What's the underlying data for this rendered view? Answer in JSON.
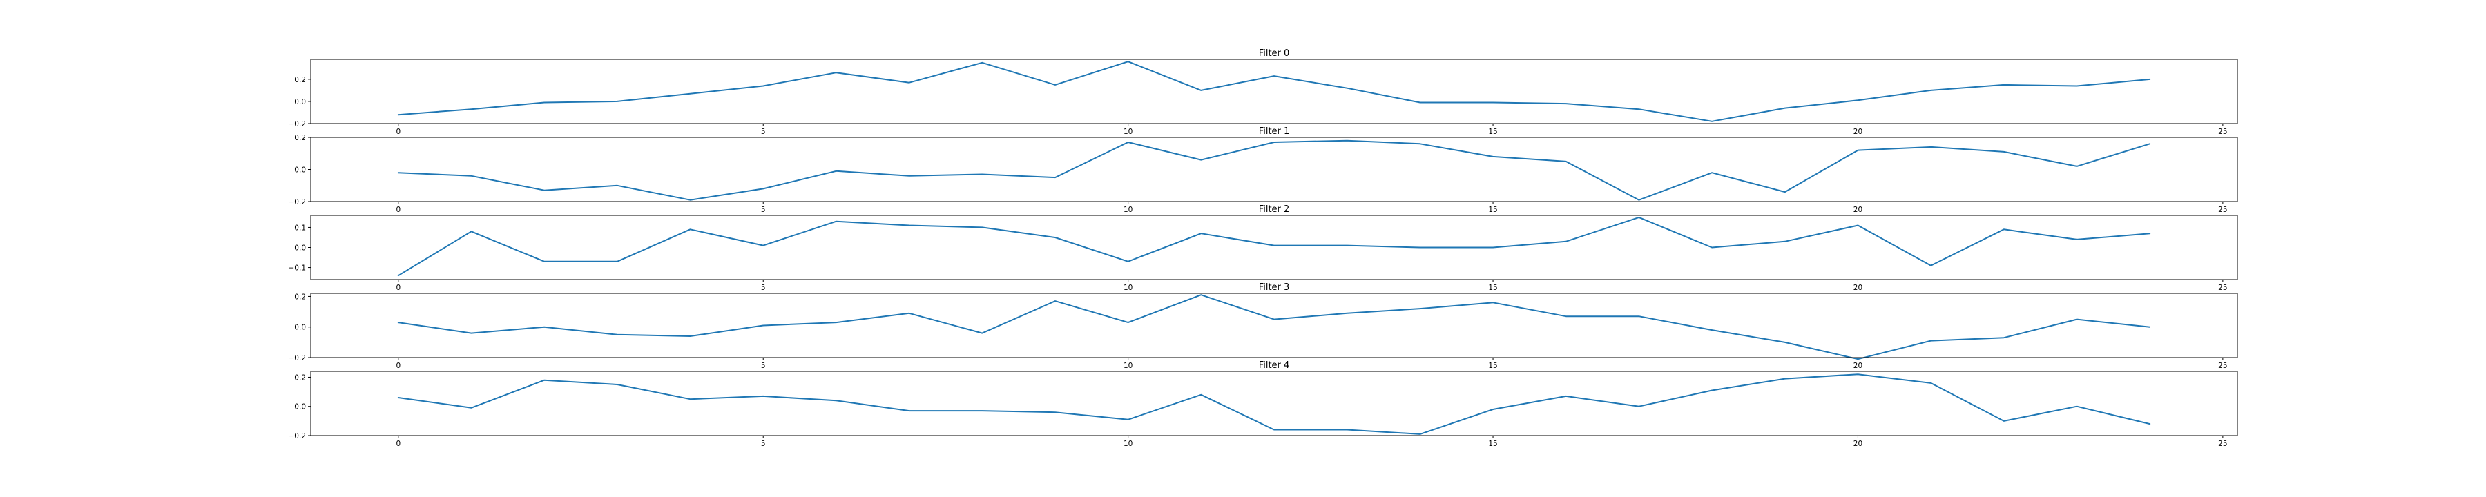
{
  "chart_data": [
    {
      "type": "line",
      "title": "Filter 0",
      "xlim": [
        -1.2,
        25.2
      ],
      "ylim": [
        -0.2,
        0.38
      ],
      "xticks": [
        0,
        5,
        10,
        15,
        20,
        25
      ],
      "yticks": [
        -0.2,
        0.0,
        0.2
      ],
      "x": [
        0,
        1,
        2,
        3,
        4,
        5,
        6,
        7,
        8,
        9,
        10,
        11,
        12,
        13,
        14,
        15,
        16,
        17,
        18,
        19,
        20,
        21,
        22,
        23,
        24
      ],
      "series": [
        {
          "values": [
            -0.12,
            -0.07,
            -0.01,
            0.0,
            0.07,
            0.14,
            0.26,
            0.17,
            0.35,
            0.15,
            0.36,
            0.1,
            0.23,
            0.12,
            -0.01,
            -0.01,
            -0.02,
            -0.07,
            -0.18,
            -0.06,
            0.01,
            0.1,
            0.15,
            0.14,
            0.2
          ],
          "color": "#1f77b4"
        }
      ]
    },
    {
      "type": "line",
      "title": "Filter 1",
      "xlim": [
        -1.2,
        25.2
      ],
      "ylim": [
        -0.2,
        0.2
      ],
      "xticks": [
        0,
        5,
        10,
        15,
        20,
        25
      ],
      "yticks": [
        -0.2,
        0.0,
        0.2
      ],
      "x": [
        0,
        1,
        2,
        3,
        4,
        5,
        6,
        7,
        8,
        9,
        10,
        11,
        12,
        13,
        14,
        15,
        16,
        17,
        18,
        19,
        20,
        21,
        22,
        23,
        24
      ],
      "series": [
        {
          "values": [
            -0.02,
            -0.04,
            -0.13,
            -0.1,
            -0.19,
            -0.12,
            -0.01,
            -0.04,
            -0.03,
            -0.05,
            0.17,
            0.06,
            0.17,
            0.18,
            0.16,
            0.08,
            0.05,
            -0.19,
            -0.02,
            -0.14,
            0.12,
            0.14,
            0.11,
            0.02,
            0.16
          ],
          "color": "#1f77b4"
        }
      ]
    },
    {
      "type": "line",
      "title": "Filter 2",
      "xlim": [
        -1.2,
        25.2
      ],
      "ylim": [
        -0.16,
        0.16
      ],
      "xticks": [
        0,
        5,
        10,
        15,
        20,
        25
      ],
      "yticks": [
        -0.1,
        0.0,
        0.1
      ],
      "x": [
        0,
        1,
        2,
        3,
        4,
        5,
        6,
        7,
        8,
        9,
        10,
        11,
        12,
        13,
        14,
        15,
        16,
        17,
        18,
        19,
        20,
        21,
        22,
        23,
        24
      ],
      "series": [
        {
          "values": [
            -0.14,
            0.08,
            -0.07,
            -0.07,
            0.09,
            0.01,
            0.13,
            0.11,
            0.1,
            0.05,
            -0.07,
            0.07,
            0.01,
            0.01,
            0.0,
            0.0,
            0.03,
            0.15,
            0.0,
            0.03,
            0.11,
            -0.09,
            0.09,
            0.04,
            0.07
          ],
          "color": "#1f77b4"
        }
      ]
    },
    {
      "type": "line",
      "title": "Filter 3",
      "xlim": [
        -1.2,
        25.2
      ],
      "ylim": [
        -0.2,
        0.22
      ],
      "xticks": [
        0,
        5,
        10,
        15,
        20,
        25
      ],
      "yticks": [
        -0.2,
        0.0,
        0.2
      ],
      "x": [
        0,
        1,
        2,
        3,
        4,
        5,
        6,
        7,
        8,
        9,
        10,
        11,
        12,
        13,
        14,
        15,
        16,
        17,
        18,
        19,
        20,
        21,
        22,
        23,
        24
      ],
      "series": [
        {
          "values": [
            0.03,
            -0.04,
            0.0,
            -0.05,
            -0.06,
            0.01,
            0.03,
            0.09,
            -0.04,
            0.17,
            0.03,
            0.21,
            0.05,
            0.09,
            0.12,
            0.16,
            0.07,
            0.07,
            -0.02,
            -0.1,
            -0.21,
            -0.09,
            -0.07,
            0.05,
            0.0
          ],
          "color": "#1f77b4"
        }
      ]
    },
    {
      "type": "line",
      "title": "Filter 4",
      "xlim": [
        -1.2,
        25.2
      ],
      "ylim": [
        -0.2,
        0.24
      ],
      "xticks": [
        0,
        5,
        10,
        15,
        20,
        25
      ],
      "yticks": [
        -0.2,
        0.0,
        0.2
      ],
      "x": [
        0,
        1,
        2,
        3,
        4,
        5,
        6,
        7,
        8,
        9,
        10,
        11,
        12,
        13,
        14,
        15,
        16,
        17,
        18,
        19,
        20,
        21,
        22,
        23,
        24
      ],
      "series": [
        {
          "values": [
            0.06,
            -0.01,
            0.18,
            0.15,
            0.05,
            0.07,
            0.04,
            -0.03,
            -0.03,
            -0.04,
            -0.09,
            0.08,
            -0.16,
            -0.16,
            -0.19,
            -0.02,
            0.07,
            0.0,
            0.11,
            0.19,
            0.22,
            0.16,
            -0.1,
            0.0,
            -0.12
          ],
          "color": "#1f77b4"
        }
      ]
    }
  ]
}
